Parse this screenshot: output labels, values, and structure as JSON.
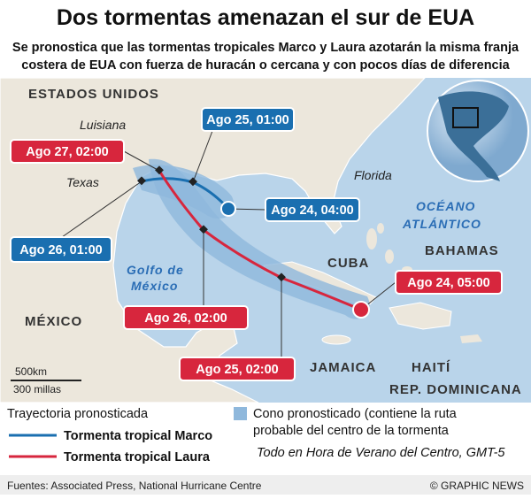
{
  "header": {
    "title": "Dos tormentas amenazan el sur de EUA",
    "subtitle": [
      "Se pronostica que las tormentas tropicales Marco y Laura azotarán la misma franja",
      "costera de EUA con fuerza de huracán o cercana y con pocos días de diferencia"
    ]
  },
  "map": {
    "labels": {
      "usa": "ESTADOS UNIDOS",
      "louisiana": "Luisiana",
      "texas": "Texas",
      "florida": "Florida",
      "ocean": [
        "OCÉANO",
        "ATLÁNTICO"
      ],
      "bahamas": "BAHAMAS",
      "cuba": "CUBA",
      "mexico": "MÉXICO",
      "gulf": [
        "Golfo de",
        "México"
      ],
      "jamaica": "JAMAICA",
      "haiti": "HAITÍ",
      "dominican": "REP. DOMINICANA"
    },
    "scale": {
      "km": "500km",
      "miles": "300 millas"
    }
  },
  "callouts": {
    "marco": [
      "Ago 25, 01:00",
      "Ago 24, 04:00",
      "Ago 26, 01:00"
    ],
    "laura": [
      "Ago 27, 02:00",
      "Ago 24, 05:00",
      "Ago 26, 02:00",
      "Ago 25, 02:00"
    ]
  },
  "legend": {
    "title": "Trayectoria pronosticada",
    "marco": "Tormenta tropical Marco",
    "laura": "Tormenta tropical Laura",
    "cone": [
      "Cono pronosticado (contiene la ruta",
      "probable del centro de la tormenta"
    ],
    "note": "Todo en Hora de Verano del Centro, GMT-5"
  },
  "footer": {
    "sources": "Fuentes: Associated Press, National Hurricane Centre",
    "credit": "© GRAPHIC NEWS"
  }
}
